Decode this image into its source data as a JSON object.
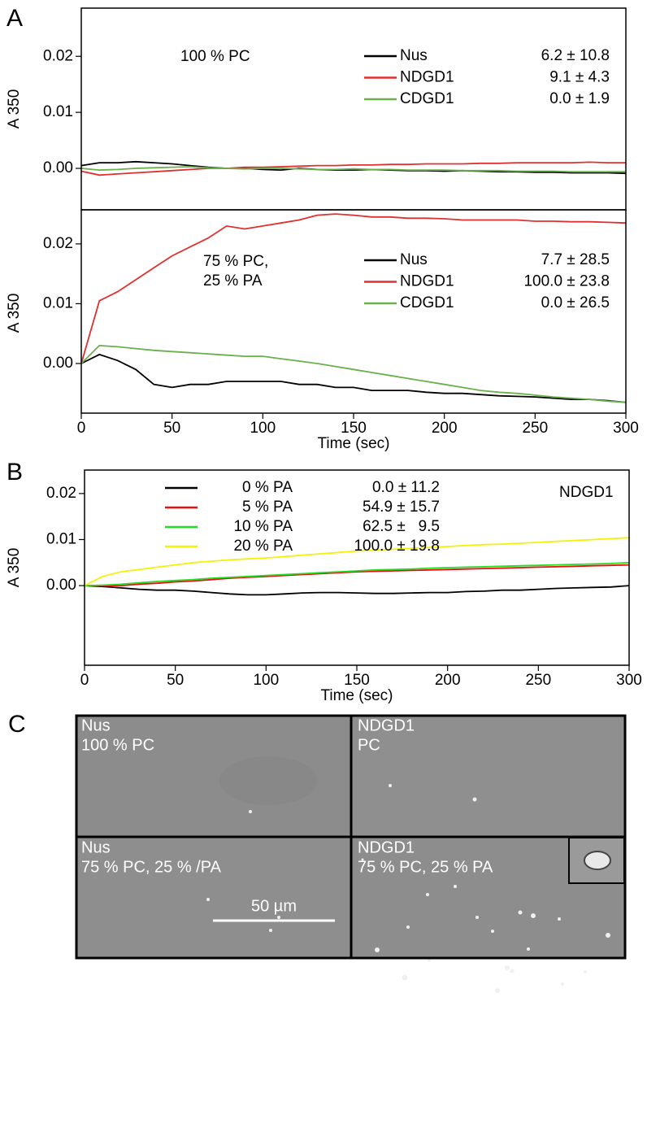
{
  "panel_labels": [
    "A",
    "B",
    "C"
  ],
  "chart_data": [
    {
      "type": "line",
      "ylabel": "A 350",
      "annotation": [
        "100 % PC"
      ],
      "x": [
        0,
        10,
        20,
        30,
        40,
        50,
        60,
        70,
        80,
        90,
        100,
        110,
        120,
        130,
        140,
        150,
        160,
        170,
        180,
        190,
        200,
        210,
        220,
        230,
        240,
        250,
        260,
        270,
        280,
        290,
        300
      ],
      "xlim": [
        0,
        300
      ],
      "ylim": [
        -0.0074,
        0.0286
      ],
      "yticks": [
        {
          "value": 0,
          "label": "0.00"
        },
        0.01,
        0.02
      ],
      "series": [
        {
          "name": "Nus",
          "color": "#000000",
          "stat": "6.2 ± 10.8",
          "values": [
            0.0005,
            0.001,
            0.001,
            0.0012,
            0.001,
            0.0008,
            0.0005,
            0.0002,
            0,
            0,
            -0.0002,
            -0.0003,
            0,
            -0.0002,
            -0.0003,
            -0.0003,
            -0.0002,
            -0.0003,
            -0.0004,
            -0.0004,
            -0.0005,
            -0.0004,
            -0.0005,
            -0.0006,
            -0.0006,
            -0.0007,
            -0.0007,
            -0.0008,
            -0.0008,
            -0.0008,
            -0.0009
          ]
        },
        {
          "name": "NDGD1",
          "color": "#e03030",
          "stat": "9.1 ± 4.3",
          "values": [
            -0.0005,
            -0.0012,
            -0.001,
            -0.0008,
            -0.0006,
            -0.0004,
            -0.0002,
            0,
            0,
            0.0002,
            0.0002,
            0.0003,
            0.0004,
            0.0005,
            0.0005,
            0.0006,
            0.0006,
            0.0007,
            0.0007,
            0.0008,
            0.0008,
            0.0008,
            0.0009,
            0.0009,
            0.001,
            0.001,
            0.001,
            0.001,
            0.0011,
            0.001,
            0.001
          ]
        },
        {
          "name": "CDGD1",
          "color": "#6ab04c",
          "stat": "0.0 ± 1.9",
          "values": [
            0,
            -0.0003,
            -0.0002,
            0,
            0.0001,
            0.0002,
            0.0003,
            0.0001,
            0,
            -0.0001,
            0,
            0,
            -0.0001,
            -0.0002,
            -0.0002,
            -0.0001,
            -0.0002,
            -0.0002,
            -0.0003,
            -0.0003,
            -0.0003,
            -0.0004,
            -0.0004,
            -0.0004,
            -0.0005,
            -0.0005,
            -0.0005,
            -0.0006,
            -0.0006,
            -0.0006,
            -0.0006
          ]
        }
      ]
    },
    {
      "type": "line",
      "ylabel": "A 350",
      "xlabel": "Time (sec)",
      "annotation": [
        "75 % PC,",
        "25 % PA"
      ],
      "x": [
        0,
        10,
        20,
        30,
        40,
        50,
        60,
        70,
        80,
        90,
        100,
        110,
        120,
        130,
        140,
        150,
        160,
        170,
        180,
        190,
        200,
        210,
        220,
        230,
        240,
        250,
        260,
        270,
        280,
        290,
        300
      ],
      "xlim": [
        0,
        300
      ],
      "xticks": [
        0,
        50,
        100,
        150,
        200,
        250,
        300
      ],
      "ylim": [
        -0.0083,
        0.0257
      ],
      "yticks": [
        {
          "value": 0,
          "label": "0.00"
        },
        0.01,
        0.02
      ],
      "series": [
        {
          "name": "Nus",
          "color": "#000000",
          "stat": "7.7 ± 28.5",
          "values": [
            0,
            0.0015,
            0.0005,
            -0.001,
            -0.0035,
            -0.004,
            -0.0035,
            -0.0035,
            -0.003,
            -0.003,
            -0.003,
            -0.003,
            -0.0035,
            -0.0035,
            -0.004,
            -0.004,
            -0.0045,
            -0.0045,
            -0.0045,
            -0.0048,
            -0.005,
            -0.005,
            -0.0052,
            -0.0054,
            -0.0055,
            -0.0056,
            -0.0058,
            -0.006,
            -0.006,
            -0.0062,
            -0.0065
          ]
        },
        {
          "name": "NDGD1",
          "color": "#e03030",
          "stat": "100.0 ± 23.8",
          "values": [
            0,
            0.0105,
            0.012,
            0.014,
            0.016,
            0.018,
            0.0195,
            0.021,
            0.023,
            0.0225,
            0.023,
            0.0235,
            0.024,
            0.0248,
            0.025,
            0.0248,
            0.0245,
            0.0245,
            0.0243,
            0.0243,
            0.0242,
            0.024,
            0.024,
            0.024,
            0.024,
            0.0238,
            0.0238,
            0.0237,
            0.0237,
            0.0236,
            0.0235
          ]
        },
        {
          "name": "CDGD1",
          "color": "#6ab04c",
          "stat": "0.0 ± 26.5",
          "values": [
            0,
            0.003,
            0.0028,
            0.0025,
            0.0022,
            0.002,
            0.0018,
            0.0016,
            0.0014,
            0.0012,
            0.0012,
            0.0008,
            0.0004,
            0,
            -0.0005,
            -0.001,
            -0.0015,
            -0.002,
            -0.0025,
            -0.003,
            -0.0035,
            -0.004,
            -0.0045,
            -0.0048,
            -0.005,
            -0.0053,
            -0.0056,
            -0.0058,
            -0.006,
            -0.0063,
            -0.0065
          ]
        }
      ]
    },
    {
      "type": "line",
      "ylabel": "A 350",
      "xlabel": "Time (sec)",
      "annotation": [
        "NDGD1"
      ],
      "x": [
        0,
        10,
        20,
        30,
        40,
        50,
        60,
        70,
        80,
        90,
        100,
        110,
        120,
        130,
        140,
        150,
        160,
        170,
        180,
        190,
        200,
        210,
        220,
        230,
        240,
        250,
        260,
        270,
        280,
        290,
        300
      ],
      "xlim": [
        0,
        300
      ],
      "xticks": [
        0,
        50,
        100,
        150,
        200,
        250,
        300
      ],
      "ylim": [
        -0.0173,
        0.0251
      ],
      "yticks": [
        {
          "value": 0,
          "label": "0.00"
        },
        0.01,
        0.02
      ],
      "series": [
        {
          "name": "0 % PA",
          "color": "#000000",
          "stat": "0.0 ± 11.2",
          "values": [
            0,
            -0.0002,
            -0.0005,
            -0.0008,
            -0.001,
            -0.001,
            -0.0012,
            -0.0015,
            -0.0018,
            -0.002,
            -0.002,
            -0.0018,
            -0.0016,
            -0.0015,
            -0.0015,
            -0.0016,
            -0.0017,
            -0.0017,
            -0.0016,
            -0.0015,
            -0.0015,
            -0.0013,
            -0.0012,
            -0.001,
            -0.001,
            -0.0008,
            -0.0006,
            -0.0005,
            -0.0004,
            -0.0003,
            0
          ]
        },
        {
          "name": "5 % PA",
          "color": "#e81010",
          "stat": "54.9 ± 15.7",
          "values": [
            0,
            0,
            0,
            0.0003,
            0.0005,
            0.0008,
            0.001,
            0.0013,
            0.0016,
            0.0018,
            0.002,
            0.0022,
            0.0024,
            0.0026,
            0.0028,
            0.003,
            0.0031,
            0.0032,
            0.0033,
            0.0034,
            0.0035,
            0.0036,
            0.0037,
            0.0038,
            0.0039,
            0.004,
            0.0041,
            0.0042,
            0.0043,
            0.0044,
            0.0045
          ]
        },
        {
          "name": "10 % PA",
          "color": "#22dd22",
          "stat": "62.5 ±   9.5",
          "values": [
            0,
            0.0001,
            0.0003,
            0.0006,
            0.0009,
            0.0011,
            0.0013,
            0.0016,
            0.0018,
            0.002,
            0.0022,
            0.0024,
            0.0026,
            0.0028,
            0.003,
            0.0032,
            0.0034,
            0.0035,
            0.0036,
            0.0038,
            0.0039,
            0.004,
            0.0041,
            0.0042,
            0.0043,
            0.0044,
            0.0045,
            0.0046,
            0.0047,
            0.0048,
            0.005
          ]
        },
        {
          "name": "20 % PA",
          "color": "#f2f20a",
          "stat": "100.0 ± 19.8",
          "values": [
            0,
            0.002,
            0.003,
            0.0035,
            0.004,
            0.0045,
            0.005,
            0.0053,
            0.0056,
            0.0058,
            0.006,
            0.0063,
            0.0066,
            0.0069,
            0.0072,
            0.0075,
            0.0077,
            0.0079,
            0.0081,
            0.0083,
            0.0085,
            0.0087,
            0.0089,
            0.009,
            0.0092,
            0.0094,
            0.0096,
            0.0098,
            0.01,
            0.0102,
            0.0104
          ]
        }
      ]
    }
  ],
  "micrographs": [
    {
      "lines": [
        "Nus",
        "100 % PC"
      ]
    },
    {
      "lines": [
        "NDGD1",
        "PC"
      ]
    },
    {
      "lines": [
        "Nus",
        "75 % PC, 25 % /PA"
      ]
    },
    {
      "lines": [
        "NDGD1",
        "75 % PC, 25 % PA"
      ]
    }
  ],
  "scale_bar": "50 µm"
}
